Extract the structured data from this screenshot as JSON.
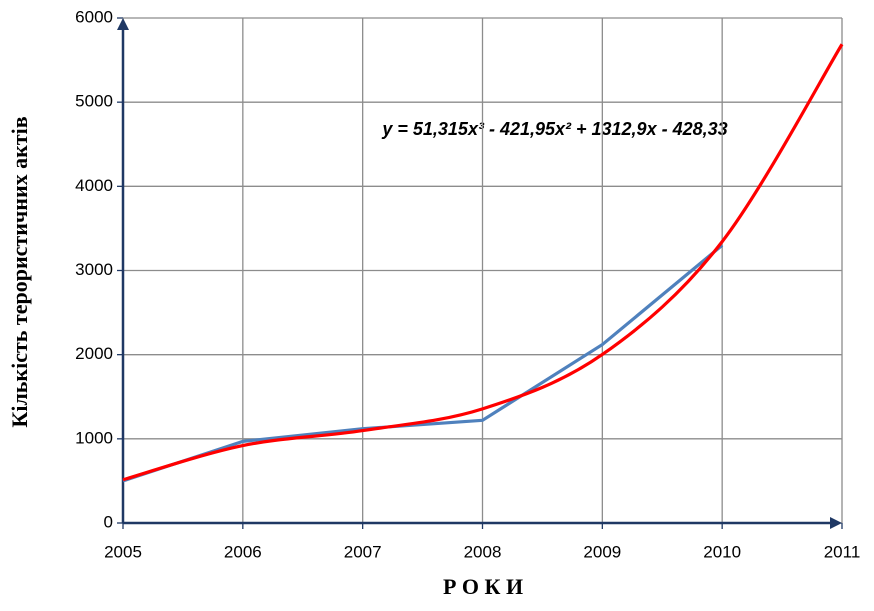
{
  "chart_data": {
    "type": "line",
    "y_label": "Кількість терористичних актів",
    "x_label": "Р О К И",
    "annotation": "y = 51,315x³ - 421,95x² + 1312,9x - 428,33",
    "x": [
      2005,
      2006,
      2007,
      2008,
      2009,
      2010,
      2011
    ],
    "series": [
      {
        "color": "#4f81bd",
        "smooth": false,
        "values": [
          500,
          970,
          1120,
          1220,
          2120,
          3300,
          null
        ]
      },
      {
        "color": "#ff0000",
        "smooth": true,
        "values": [
          514,
          920,
          1098,
          1356,
          2002,
          3343,
          5688
        ]
      }
    ],
    "xlim": [
      2005,
      2011
    ],
    "xticks": [
      2005,
      2006,
      2007,
      2008,
      2009,
      2010,
      2011
    ],
    "ylim": [
      0,
      6000
    ],
    "yticks": [
      0,
      1000,
      2000,
      3000,
      4000,
      5000,
      6000
    ],
    "grid": true
  }
}
